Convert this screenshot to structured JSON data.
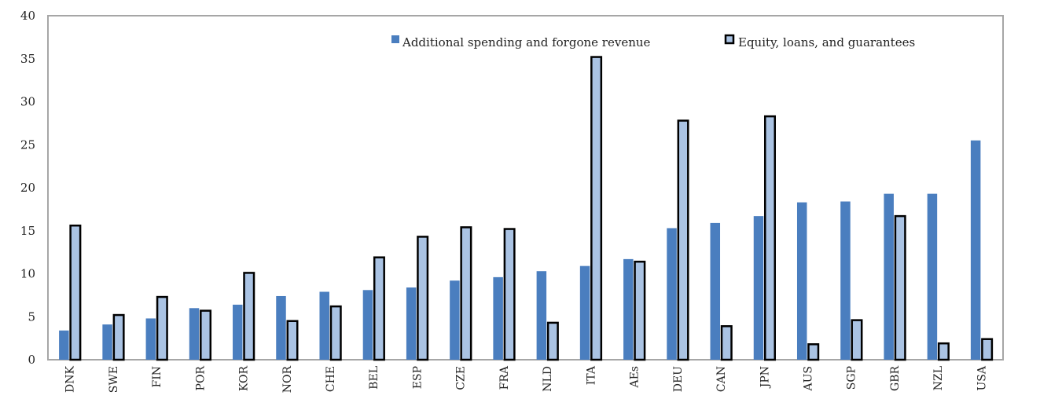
{
  "chart_data": {
    "type": "bar",
    "title": "",
    "xlabel": "",
    "ylabel": "",
    "ylim": [
      0,
      40
    ],
    "yticks": [
      0,
      5,
      10,
      15,
      20,
      25,
      30,
      35,
      40
    ],
    "grid": false,
    "legend_position": "top-right",
    "categories": [
      "DNK",
      "SWE",
      "FIN",
      "POR",
      "KOR",
      "NOR",
      "CHE",
      "BEL",
      "ESP",
      "CZE",
      "FRA",
      "NLD",
      "ITA",
      "AEs",
      "DEU",
      "CAN",
      "JPN",
      "AUS",
      "SGP",
      "GBR",
      "NZL",
      "USA"
    ],
    "series": [
      {
        "name": "Additional spending and forgone revenue",
        "color": "#4a7ebf",
        "values": [
          3.4,
          4.1,
          4.8,
          6.0,
          6.4,
          7.4,
          7.9,
          8.1,
          8.4,
          9.2,
          9.6,
          10.3,
          10.9,
          11.7,
          15.3,
          15.9,
          16.7,
          18.3,
          18.4,
          19.3,
          19.3,
          25.5
        ]
      },
      {
        "name": "Equity, loans, and guarantees",
        "color": "#aac3e3",
        "edge_color": "#000000",
        "values": [
          15.6,
          5.2,
          7.3,
          5.7,
          10.1,
          4.5,
          6.2,
          11.9,
          14.3,
          15.4,
          15.2,
          4.3,
          35.2,
          11.4,
          27.8,
          3.9,
          28.3,
          1.8,
          4.6,
          16.7,
          1.9,
          2.4
        ]
      }
    ]
  }
}
